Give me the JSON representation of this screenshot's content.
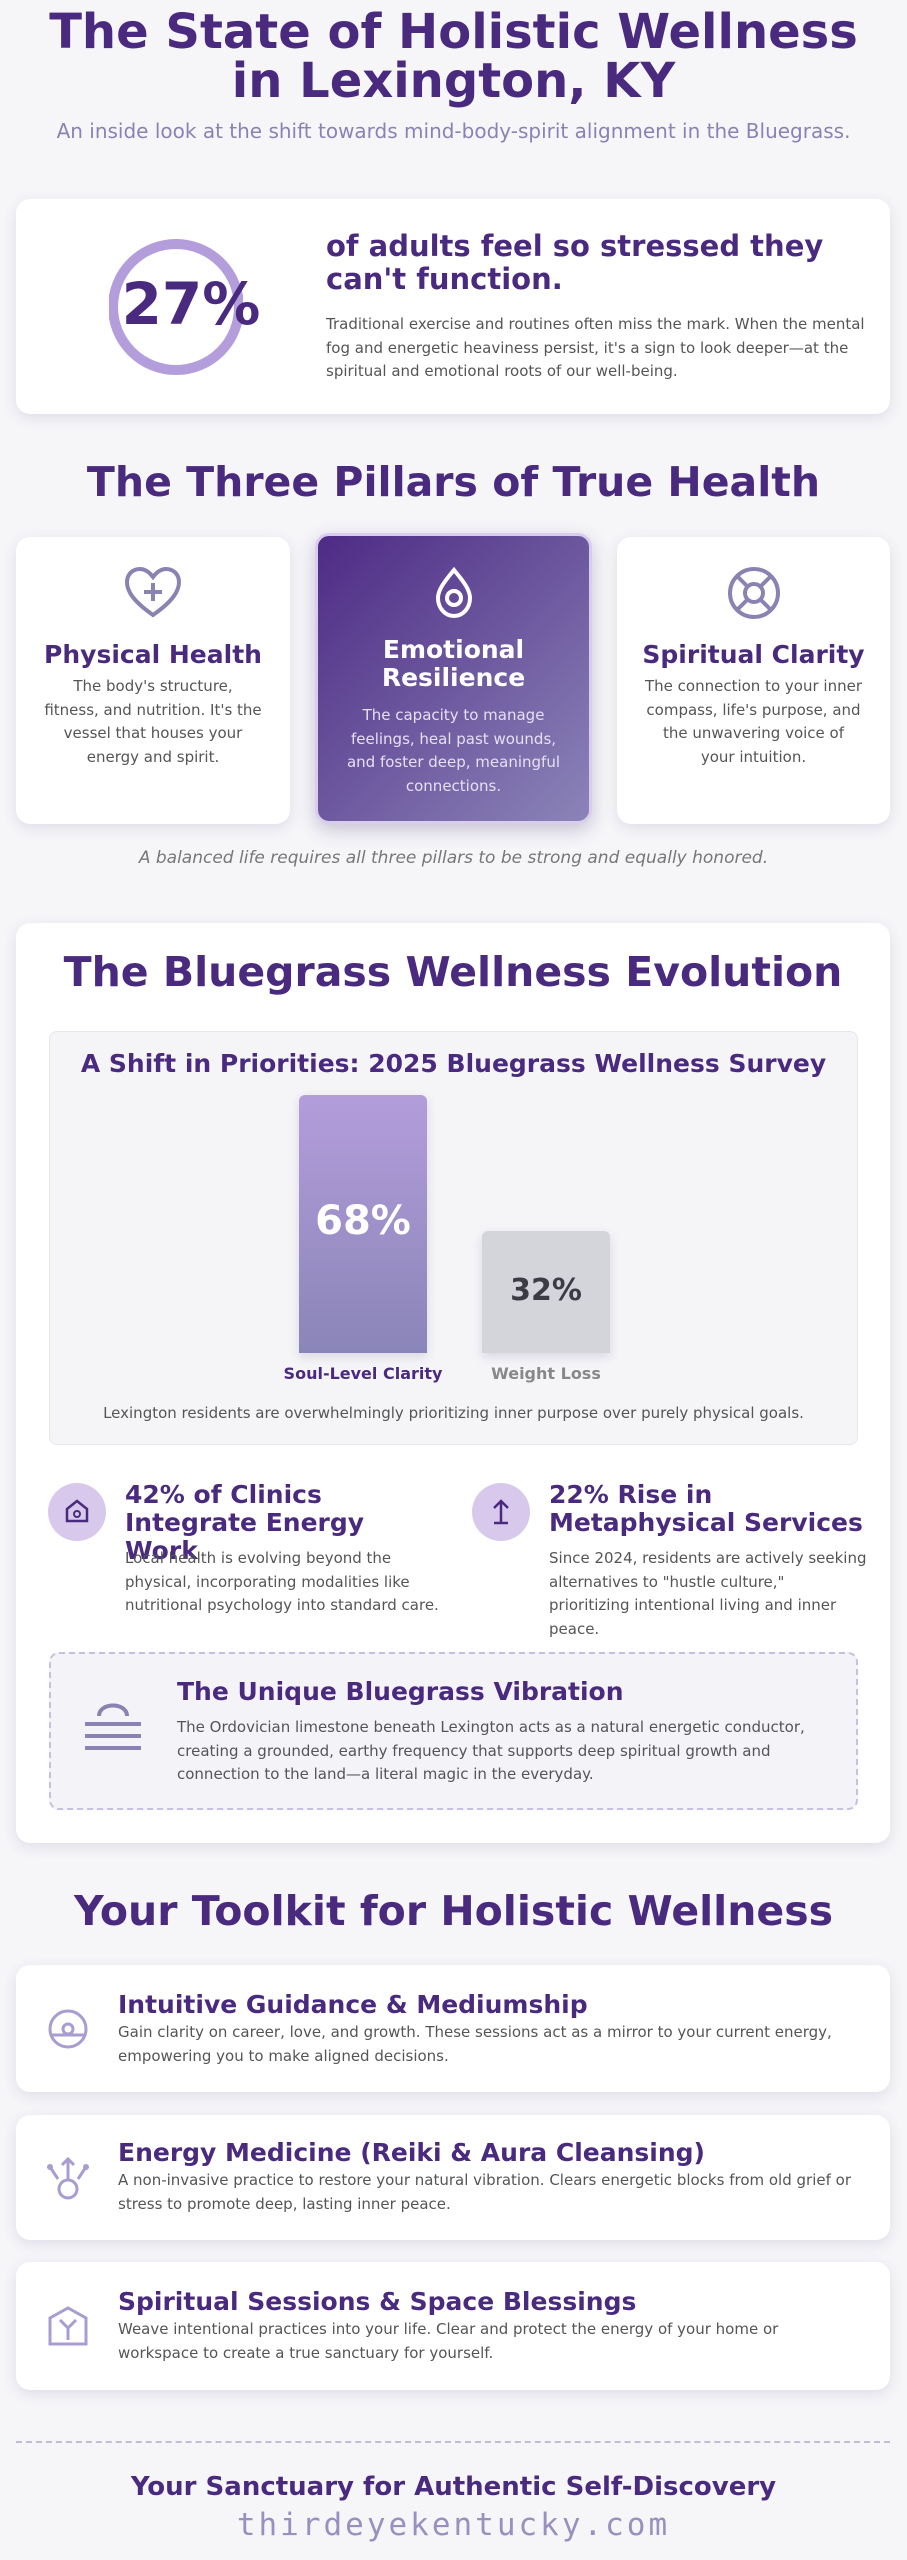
{
  "header": {
    "title": "The State of Holistic Wellness in Lexington, KY",
    "subtitle": "An inside look at the shift towards mind-body-spirit alignment in the Bluegrass."
  },
  "stat": {
    "value": "27%",
    "headline": "of adults feel so stressed they can't function.",
    "body": "Traditional exercise and routines often miss the mark. When the mental fog and energetic heaviness persist, it's a sign to look deeper—at the spiritual and emotional roots of our well-being."
  },
  "pillars": {
    "title": "The Three Pillars of True Health",
    "items": [
      {
        "title": "Physical Health",
        "body": "The body's structure, fitness, and nutrition. It's the vessel that houses your energy and spirit."
      },
      {
        "title": "Emotional Resilience",
        "body": "The capacity to manage feelings, heal past wounds, and foster deep, meaningful connections."
      },
      {
        "title": "Spiritual Clarity",
        "body": "The connection to your inner compass, life's purpose, and the unwavering voice of your intuition."
      }
    ],
    "note": "A balanced life requires all three pillars to be strong and equally honored."
  },
  "evolution": {
    "title": "The Bluegrass Wellness Evolution",
    "chart_data": {
      "type": "bar",
      "title": "A Shift in Priorities: 2025 Bluegrass Wellness Survey",
      "categories": [
        "Soul-Level Clarity",
        "Weight Loss"
      ],
      "values": [
        68,
        32
      ],
      "value_labels": [
        "68%",
        "32%"
      ],
      "caption": "Lexington residents are overwhelmingly prioritizing inner purpose over purely physical goals."
    },
    "facts": [
      {
        "title": "42% of Clinics Integrate Energy Work",
        "body": "Local health is evolving beyond the physical, incorporating modalities like nutritional psychology into standard care."
      },
      {
        "title": "22% Rise in Metaphysical Services",
        "body": "Since 2024, residents are actively seeking alternatives to \"hustle culture,\" prioritizing intentional living and inner peace."
      }
    ],
    "vibration": {
      "title": "The Unique Bluegrass Vibration",
      "body": "The Ordovician limestone beneath Lexington acts as a natural energetic conductor, creating a grounded, earthy frequency that supports deep spiritual growth and connection to the land—a literal magic in the everyday."
    }
  },
  "toolkit": {
    "title": "Your Toolkit for Holistic Wellness",
    "items": [
      {
        "title": "Intuitive Guidance & Mediumship",
        "body": "Gain clarity on career, love, and growth. These sessions act as a mirror to your current energy, empowering you to make aligned decisions."
      },
      {
        "title": "Energy Medicine (Reiki & Aura Cleansing)",
        "body": "A non-invasive practice to restore your natural vibration. Clears energetic blocks from old grief or stress to promote deep, lasting inner peace."
      },
      {
        "title": "Spiritual Sessions & Space Blessings",
        "body": "Weave intentional practices into your life. Clear and protect the energy of your home or workspace to create a true sanctuary for yourself."
      }
    ]
  },
  "footer": {
    "tagline": "Your Sanctuary for Authentic Self-Discovery",
    "url": "thirdeyekentucky.com"
  }
}
